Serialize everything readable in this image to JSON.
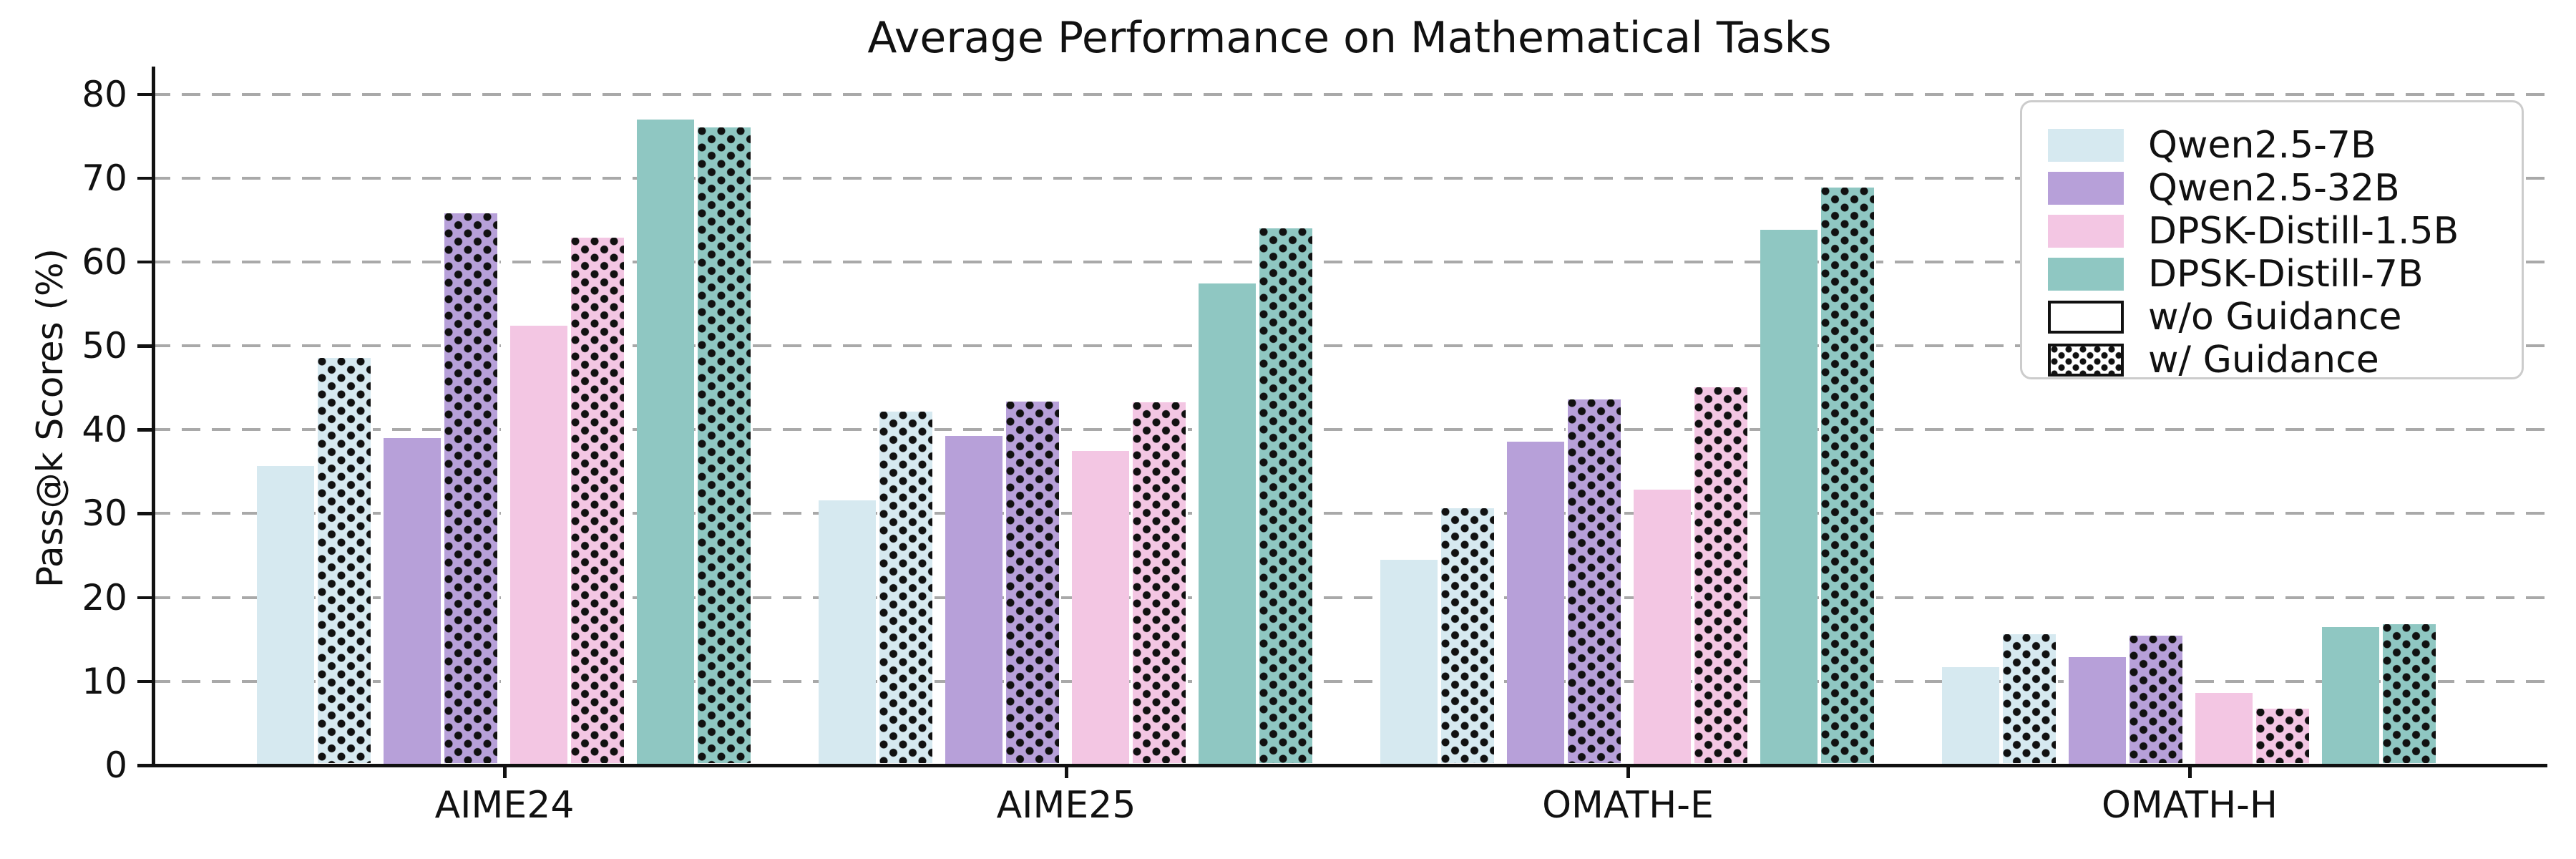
{
  "title": "Average Performance on Mathematical Tasks",
  "ylabel": "Pass@k Scores (%)",
  "chart_data": {
    "type": "bar",
    "categories": [
      "AIME24",
      "AIME25",
      "OMATH-E",
      "OMATH-H"
    ],
    "series": [
      {
        "name": "Qwen2.5-7B",
        "variant": "w/o Guidance",
        "color": "#d6e9f0",
        "hatch": false,
        "values": [
          35.7,
          31.6,
          24.5,
          11.7
        ]
      },
      {
        "name": "Qwen2.5-7B",
        "variant": "w/ Guidance",
        "color": "#d6e9f0",
        "hatch": true,
        "values": [
          48.8,
          42.4,
          30.9,
          15.9
        ]
      },
      {
        "name": "Qwen2.5-32B",
        "variant": "w/o Guidance",
        "color": "#b7a0d9",
        "hatch": false,
        "values": [
          39.0,
          39.3,
          38.6,
          12.9
        ]
      },
      {
        "name": "Qwen2.5-32B",
        "variant": "w/ Guidance",
        "color": "#b7a0d9",
        "hatch": true,
        "values": [
          66.1,
          43.6,
          43.9,
          15.7
        ]
      },
      {
        "name": "DPSK-Distill-1.5B",
        "variant": "w/o Guidance",
        "color": "#f3c6e3",
        "hatch": false,
        "values": [
          52.4,
          37.5,
          32.9,
          8.6
        ]
      },
      {
        "name": "DPSK-Distill-1.5B",
        "variant": "w/ Guidance",
        "color": "#f3c6e3",
        "hatch": true,
        "values": [
          63.2,
          43.5,
          45.3,
          7.0
        ]
      },
      {
        "name": "DPSK-Distill-7B",
        "variant": "w/o Guidance",
        "color": "#8fc7c2",
        "hatch": false,
        "values": [
          77.0,
          57.4,
          63.8,
          16.5
        ]
      },
      {
        "name": "DPSK-Distill-7B",
        "variant": "w/ Guidance",
        "color": "#8fc7c2",
        "hatch": true,
        "values": [
          76.3,
          64.3,
          69.1,
          17.1
        ]
      }
    ],
    "yticks": [
      0,
      10,
      20,
      30,
      40,
      50,
      60,
      70,
      80
    ],
    "ylim": [
      0,
      83.3
    ],
    "grid": "horizontal-dashed",
    "legend_position": "top-right"
  },
  "legend": {
    "items": [
      {
        "label": "Qwen2.5-7B",
        "swatch": "color",
        "color": "#d6e9f0"
      },
      {
        "label": "Qwen2.5-32B",
        "swatch": "color",
        "color": "#b7a0d9"
      },
      {
        "label": "DPSK-Distill-1.5B",
        "swatch": "color",
        "color": "#f3c6e3"
      },
      {
        "label": "DPSK-Distill-7B",
        "swatch": "color",
        "color": "#8fc7c2"
      },
      {
        "label": "w/o Guidance",
        "swatch": "outline"
      },
      {
        "label": "w/ Guidance",
        "swatch": "dots"
      }
    ]
  },
  "colors": {
    "dots": "#111111",
    "grid": "#a9a9a9",
    "axis": "#111111"
  }
}
